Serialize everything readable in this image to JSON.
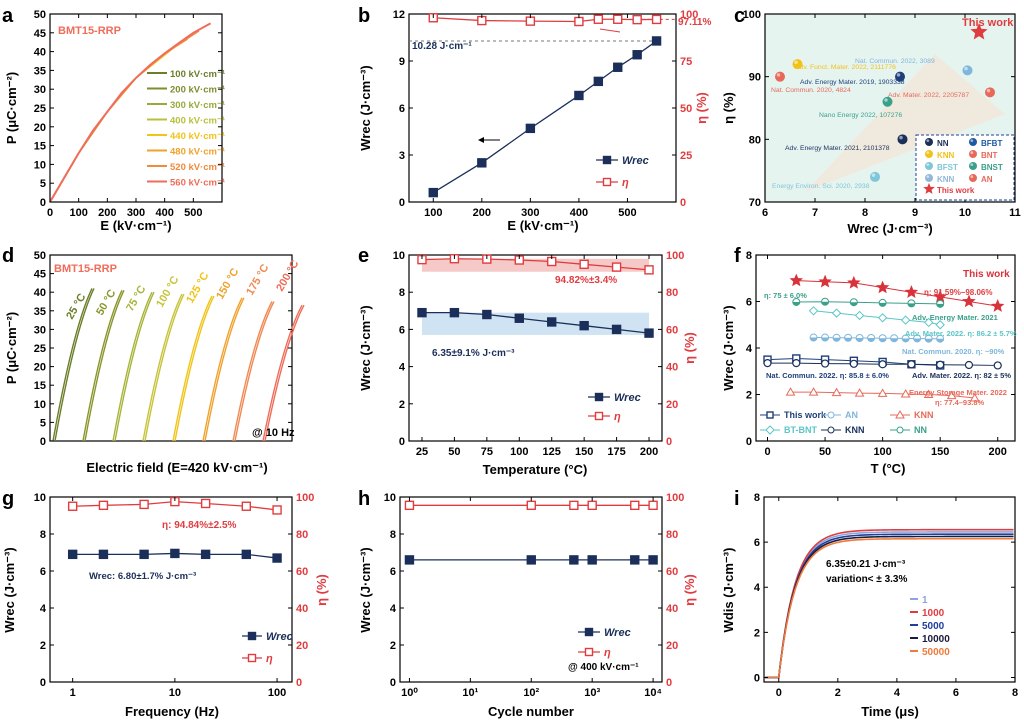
{
  "chart_data": [
    {
      "panel": "a",
      "type": "line",
      "title": "BMT15-RRP",
      "xlabel": "E (kV·cm⁻¹)",
      "ylabel": "P (μC·cm⁻²)",
      "xlim": [
        0,
        600
      ],
      "ylim": [
        0,
        50
      ],
      "xticks": [
        "0",
        "100",
        "200",
        "300",
        "400",
        "500"
      ],
      "yticks": [
        "0",
        "5",
        "10",
        "15",
        "20",
        "25",
        "30",
        "35",
        "40",
        "45",
        "50"
      ],
      "legend_position": "center-right",
      "series": [
        {
          "name": "100 kV·cm⁻¹",
          "color": "#6b7f2a",
          "x": [
            0,
            100
          ],
          "y": [
            0,
            13
          ]
        },
        {
          "name": "200 kV·cm⁻¹",
          "color": "#7d8e2e",
          "x": [
            0,
            100,
            200
          ],
          "y": [
            0,
            13,
            24
          ]
        },
        {
          "name": "300 kV·cm⁻¹",
          "color": "#9aa83c",
          "x": [
            0,
            100,
            200,
            300
          ],
          "y": [
            0,
            13,
            24,
            33
          ]
        },
        {
          "name": "400 kV·cm⁻¹",
          "color": "#b9c03d",
          "x": [
            0,
            100,
            200,
            300,
            400
          ],
          "y": [
            0,
            13,
            24,
            33,
            39.5
          ]
        },
        {
          "name": "440 kV·cm⁻¹",
          "color": "#f0c419",
          "x": [
            0,
            100,
            200,
            300,
            440
          ],
          "y": [
            0,
            13,
            24,
            33,
            41.5
          ]
        },
        {
          "name": "480 kV·cm⁻¹",
          "color": "#f0a22e",
          "x": [
            0,
            100,
            200,
            300,
            400,
            480
          ],
          "y": [
            0,
            13,
            24,
            33,
            39.5,
            43.3
          ]
        },
        {
          "name": "520 kV·cm⁻¹",
          "color": "#f08a3c",
          "x": [
            0,
            100,
            200,
            300,
            400,
            520
          ],
          "y": [
            0,
            13,
            24,
            33,
            39.5,
            45.5
          ]
        },
        {
          "name": "560 kV·cm⁻¹",
          "color": "#ef6d5a",
          "x": [
            0,
            50,
            100,
            150,
            200,
            250,
            300,
            350,
            400,
            450,
            500,
            560
          ],
          "y": [
            0,
            6.5,
            13,
            19,
            24,
            29,
            33,
            36.5,
            39.5,
            42.3,
            45,
            47.5
          ]
        }
      ]
    },
    {
      "panel": "b",
      "type": "line",
      "xlabel": "E (kV·cm⁻¹)",
      "ylabel": "Wrec (J·cm⁻³)",
      "y2label": "η (%)",
      "xlim": [
        50,
        600
      ],
      "ylim": [
        0,
        12
      ],
      "y2lim": [
        0,
        100
      ],
      "xticks": [
        "100",
        "200",
        "300",
        "400",
        "500"
      ],
      "yticks": [
        "0",
        "3",
        "6",
        "9",
        "12"
      ],
      "y2ticks": [
        "0",
        "25",
        "50",
        "75",
        "100"
      ],
      "x": [
        100,
        200,
        300,
        400,
        440,
        480,
        520,
        560
      ],
      "series": [
        {
          "name": "Wrec",
          "axis": "left",
          "color": "#1b2f5a",
          "marker": "square-filled",
          "values": [
            0.6,
            2.5,
            4.7,
            6.8,
            7.7,
            8.6,
            9.4,
            10.28
          ]
        },
        {
          "name": "η",
          "axis": "right",
          "color": "#e03c40",
          "marker": "square-open",
          "values": [
            98,
            96.5,
            96.2,
            96,
            97.2,
            97.2,
            97,
            97.11
          ]
        }
      ],
      "annotations": [
        "10.28 J·cm⁻¹",
        "97.11%"
      ]
    },
    {
      "panel": "c",
      "type": "scatter",
      "xlabel": "Wrec (J·cm⁻³)",
      "ylabel": "η (%)",
      "xlim": [
        6,
        11
      ],
      "ylim": [
        70,
        100
      ],
      "xticks": [
        "6",
        "7",
        "8",
        "9",
        "10",
        "11"
      ],
      "yticks": [
        "70",
        "80",
        "90",
        "100"
      ],
      "points": [
        {
          "x": 6.3,
          "y": 90,
          "label": "Nat. Commun. 2020, 4824",
          "color": "#e8695a"
        },
        {
          "x": 6.65,
          "y": 92,
          "label": "Adv. Funct. Mater. 2022, 2111776",
          "color": "#f2c219"
        },
        {
          "x": 8.7,
          "y": 90,
          "label": "Adv. Energy Mater. 2019, 1903338",
          "color": "#1e3f7a"
        },
        {
          "x": 10.05,
          "y": 91,
          "label": "Nat. Commun. 2022, 3089",
          "color": "#7fb6dc"
        },
        {
          "x": 8.45,
          "y": 86,
          "label": "Nano Energy 2022, 107276",
          "color": "#3aa08a"
        },
        {
          "x": 10.5,
          "y": 87.5,
          "label": "Adv. Mater. 2022, 2205787",
          "color": "#e8695a"
        },
        {
          "x": 8.75,
          "y": 80,
          "label": "Adv. Energy Mater. 2021, 2101378",
          "color": "#1b2f5a"
        },
        {
          "x": 8.2,
          "y": 74,
          "label": "Energy Environ. Sci. 2020, 2938",
          "color": "#7fc6d8"
        },
        {
          "x": 10.28,
          "y": 97.11,
          "label": "This work",
          "color": "#e03c40",
          "marker": "star"
        }
      ],
      "legend": [
        {
          "label": "NN",
          "color": "#1b2f5a"
        },
        {
          "label": "BFBT",
          "color": "#1e5aa0"
        },
        {
          "label": "KNN",
          "color": "#f2c219"
        },
        {
          "label": "BNT",
          "color": "#e8695a"
        },
        {
          "label": "BFST",
          "color": "#7fc6d8"
        },
        {
          "label": "BNST",
          "color": "#3aa08a"
        },
        {
          "label": "KNN",
          "color": "#8fb7d8"
        },
        {
          "label": "AN",
          "color": "#e8695a"
        },
        {
          "label": "This work",
          "color": "#e03c40",
          "marker": "star"
        }
      ]
    },
    {
      "panel": "d",
      "type": "line",
      "title": "BMT15-RRP",
      "xlabel": "Electric field (E=420 kV·cm⁻¹)",
      "ylabel": "P (μC·cm⁻²)",
      "ylim": [
        0,
        50
      ],
      "yticks": [
        "0",
        "5",
        "10",
        "15",
        "20",
        "25",
        "30",
        "35",
        "40",
        "45",
        "50"
      ],
      "annotation": "@ 10 Hz",
      "series": [
        {
          "name": "25 °C",
          "color": "#6b7f2a"
        },
        {
          "name": "50 °C",
          "color": "#8a962c"
        },
        {
          "name": "75 °C",
          "color": "#a9b43a"
        },
        {
          "name": "100 °C",
          "color": "#c7c43a"
        },
        {
          "name": "125 °C",
          "color": "#f0c419"
        },
        {
          "name": "150 °C",
          "color": "#f0a22e"
        },
        {
          "name": "175 °C",
          "color": "#f08a55"
        },
        {
          "name": "200 °C",
          "color": "#ef6d5a"
        }
      ],
      "endpoints": [
        41,
        40.5,
        40,
        39.5,
        39,
        38.5,
        37.5,
        36.5
      ]
    },
    {
      "panel": "e",
      "type": "line",
      "xlabel": "Temperature (°C)",
      "ylabel": "Wrec (J·cm⁻³)",
      "y2label": "η (%)",
      "xlim": [
        15,
        210
      ],
      "ylim": [
        0,
        10
      ],
      "y2lim": [
        0,
        100
      ],
      "xticks": [
        "25",
        "50",
        "75",
        "100",
        "125",
        "150",
        "175",
        "200"
      ],
      "yticks": [
        "0",
        "2",
        "4",
        "6",
        "8",
        "10"
      ],
      "y2ticks": [
        "0",
        "20",
        "40",
        "60",
        "80",
        "100"
      ],
      "x": [
        25,
        50,
        75,
        100,
        125,
        150,
        175,
        200
      ],
      "series": [
        {
          "name": "Wrec",
          "axis": "left",
          "color": "#1b2f5a",
          "marker": "square-filled",
          "values": [
            6.9,
            6.9,
            6.8,
            6.6,
            6.4,
            6.2,
            6.0,
            5.8
          ]
        },
        {
          "name": "η",
          "axis": "right",
          "color": "#e03c40",
          "marker": "square-open",
          "values": [
            97.5,
            98,
            97.8,
            97.3,
            96.5,
            95,
            93.5,
            92
          ]
        }
      ],
      "annotations": [
        "94.82%±3.4%",
        "6.35±9.1% J·cm⁻³"
      ]
    },
    {
      "panel": "f",
      "type": "scatter",
      "xlabel": "T (°C)",
      "ylabel": "Wrec (J·cm⁻³)",
      "xlim": [
        -10,
        215
      ],
      "ylim": [
        0,
        8
      ],
      "xticks": [
        "0",
        "50",
        "100",
        "150",
        "200"
      ],
      "yticks": [
        "0",
        "2",
        "4",
        "6",
        "8"
      ],
      "series": [
        {
          "name": "This work",
          "color": "#d8323b",
          "marker": "star",
          "x": [
            25,
            50,
            75,
            100,
            125,
            150,
            175,
            200
          ],
          "y": [
            6.9,
            6.85,
            6.8,
            6.6,
            6.4,
            6.2,
            6.0,
            5.8
          ]
        },
        {
          "name": "NN",
          "color": "#3aa08a",
          "marker": "half-circle",
          "x": [
            25,
            50,
            75,
            100,
            125,
            150
          ],
          "y": [
            5.98,
            5.99,
            5.97,
            5.94,
            5.92,
            5.9
          ]
        },
        {
          "name": "BT-BNT",
          "color": "#5bc6c6",
          "marker": "diamond",
          "x": [
            40,
            60,
            80,
            100,
            120,
            140,
            150
          ],
          "y": [
            5.6,
            5.5,
            5.4,
            5.3,
            5.2,
            5.1,
            5.0
          ]
        },
        {
          "name": "AN",
          "color": "#7fb6dc",
          "marker": "half-circle",
          "x": [
            40,
            50,
            60,
            70,
            80,
            90,
            100,
            110,
            120,
            130,
            140,
            150
          ],
          "y": [
            4.45,
            4.45,
            4.44,
            4.44,
            4.43,
            4.43,
            4.42,
            4.42,
            4.41,
            4.41,
            4.4,
            4.4
          ]
        },
        {
          "name": "KNN",
          "color": "#1e3f7a",
          "marker": "square-open",
          "x": [
            0,
            25,
            50,
            75,
            100,
            125,
            150
          ],
          "y": [
            3.5,
            3.55,
            3.5,
            3.45,
            3.4,
            3.3,
            3.25
          ]
        },
        {
          "name": "KNN",
          "color": "#1b2f5a",
          "marker": "pentagon",
          "x": [
            0,
            25,
            50,
            75,
            100,
            125,
            150,
            175,
            200
          ],
          "y": [
            3.35,
            3.35,
            3.33,
            3.32,
            3.3,
            3.3,
            3.28,
            3.27,
            3.25
          ]
        },
        {
          "name": "KNN",
          "color": "#e8695a",
          "marker": "triangle",
          "x": [
            20,
            40,
            60,
            80,
            100,
            120,
            140,
            160,
            180
          ],
          "y": [
            2.1,
            2.1,
            2.08,
            2.06,
            2.05,
            2.02,
            2.0,
            1.95,
            1.85
          ]
        }
      ],
      "annotations": [
        "This work",
        "η: 91.59%–98.06%",
        "η: 75 ± 6.0%",
        "Adv. Energy Mater. 2021",
        "Adv. Mater. 2022. η: 86.2 ± 5.7%",
        "Nat. Commun. 2020. η: ~90%",
        "Nat. Commun. 2022. η: 85.8 ± 6.0%",
        "Adv. Mater. 2022. η: 82 ± 5%",
        "Energy Storage Mater. 2022",
        "η: 77.4–93.8%"
      ]
    },
    {
      "panel": "g",
      "type": "line",
      "xlabel": "Frequency (Hz)",
      "ylabel": "Wrec (J·cm⁻³)",
      "y2label": "η (%)",
      "xscale": "log",
      "xlim": [
        0.6,
        140
      ],
      "ylim": [
        0,
        10
      ],
      "y2lim": [
        0,
        100
      ],
      "xticks": [
        "1",
        "10",
        "100"
      ],
      "yticks": [
        "0",
        "2",
        "4",
        "6",
        "8",
        "10"
      ],
      "y2ticks": [
        "0",
        "20",
        "40",
        "60",
        "80",
        "100"
      ],
      "x": [
        1,
        2,
        5,
        10,
        20,
        50,
        100
      ],
      "series": [
        {
          "name": "Wrec",
          "axis": "left",
          "color": "#1b2f5a",
          "marker": "square-filled",
          "values": [
            6.9,
            6.9,
            6.9,
            6.95,
            6.9,
            6.9,
            6.7
          ]
        },
        {
          "name": "η",
          "axis": "right",
          "color": "#e03c40",
          "marker": "square-open",
          "values": [
            95,
            95.5,
            96,
            97.5,
            96.5,
            95,
            93
          ]
        }
      ],
      "annotations": [
        "η: 94.84%±2.5%",
        "Wrec: 6.80±1.7% J·cm⁻³"
      ]
    },
    {
      "panel": "h",
      "type": "line",
      "xlabel": "Cycle number",
      "ylabel": "Wrec (J·cm⁻³)",
      "y2label": "η (%)",
      "xscale": "log",
      "xlim": [
        0.7,
        14000
      ],
      "ylim": [
        0,
        10
      ],
      "y2lim": [
        0,
        100
      ],
      "xticks": [
        "10⁰",
        "10¹",
        "10²",
        "10³",
        "10⁴"
      ],
      "yticks": [
        "0",
        "2",
        "4",
        "6",
        "8",
        "10"
      ],
      "y2ticks": [
        "0",
        "20",
        "40",
        "60",
        "80",
        "100"
      ],
      "x": [
        1,
        100,
        500,
        1000,
        5000,
        10000
      ],
      "series": [
        {
          "name": "Wrec",
          "axis": "left",
          "color": "#1b2f5a",
          "marker": "square-filled",
          "values": [
            6.6,
            6.6,
            6.6,
            6.6,
            6.6,
            6.6
          ]
        },
        {
          "name": "η",
          "axis": "right",
          "color": "#e03c40",
          "marker": "square-open",
          "values": [
            95.5,
            95.5,
            95.5,
            95.5,
            95.5,
            95.5
          ]
        }
      ],
      "annotations": [
        "@ 400 kV·cm⁻¹"
      ]
    },
    {
      "panel": "i",
      "type": "line",
      "xlabel": "Time (μs)",
      "ylabel": "Wdis (J·cm⁻³)",
      "xlim": [
        -0.5,
        8
      ],
      "ylim": [
        -0.2,
        8
      ],
      "xticks": [
        "0",
        "2",
        "4",
        "6",
        "8"
      ],
      "yticks": [
        "0",
        "2",
        "4",
        "6",
        "8"
      ],
      "series": [
        {
          "name": "1",
          "color": "#8aa6e0",
          "plateau": 6.45
        },
        {
          "name": "1000",
          "color": "#e03c40",
          "plateau": 6.55
        },
        {
          "name": "5000",
          "color": "#1e3f9a",
          "plateau": 6.35
        },
        {
          "name": "10000",
          "color": "#1b1b3a",
          "plateau": 6.25
        },
        {
          "name": "50000",
          "color": "#ef7a3c",
          "plateau": 6.15
        }
      ],
      "annotations": [
        "6.35±0.21 J·cm⁻³",
        "variation< ± 3.3%"
      ]
    }
  ],
  "labels": {
    "a_title": "BMT15-RRP",
    "a_x": "E (kV·cm⁻¹)",
    "a_y": "P (μC·cm⁻²)",
    "b_x": "E (kV·cm⁻¹)",
    "b_y": "Wrec (J·cm⁻³)",
    "b_y2": "η (%)",
    "c_x": "Wrec (J·cm⁻³)",
    "c_y": "η (%)",
    "d_title": "BMT15-RRP",
    "d_x": "Electric field (E=420 kV·cm⁻¹)",
    "d_y": "P (μC·cm⁻²)",
    "e_x": "Temperature (°C)",
    "e_y": "Wrec (J·cm⁻³)",
    "e_y2": "η (%)",
    "f_x": "T (°C)",
    "f_y": "Wrec (J·cm⁻³)",
    "g_x": "Frequency (Hz)",
    "g_y": "Wrec (J·cm⁻³)",
    "g_y2": "η (%)",
    "h_x": "Cycle number",
    "h_y": "Wrec (J·cm⁻³)",
    "h_y2": "η (%)",
    "i_x": "Time (μs)",
    "i_y": "Wdis (J·cm⁻³)"
  }
}
